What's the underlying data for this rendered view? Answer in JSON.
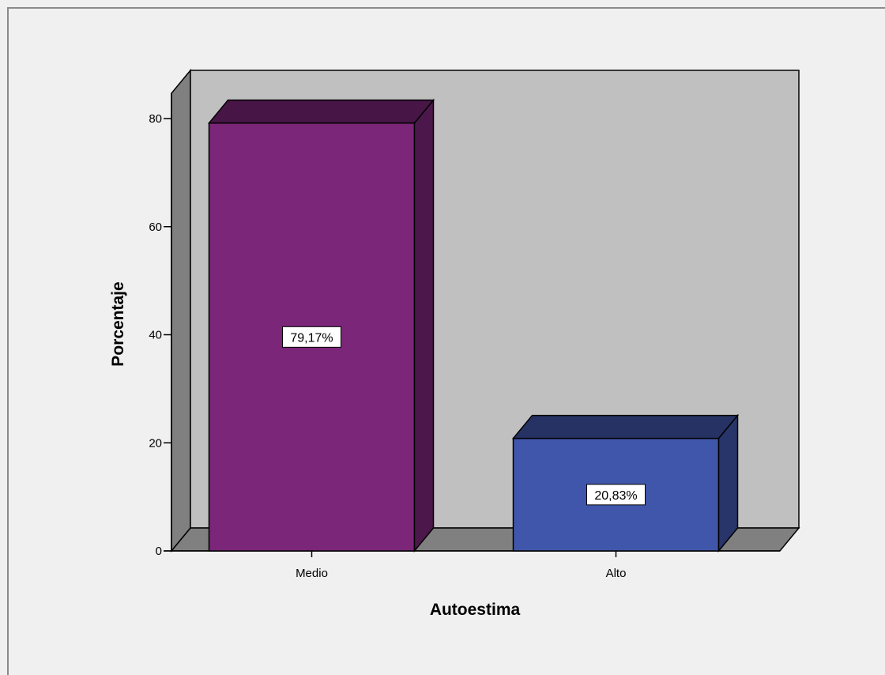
{
  "chart_data": {
    "type": "bar",
    "categories": [
      "Medio",
      "Alto"
    ],
    "values": [
      79.17,
      20.83
    ],
    "data_labels": [
      "79,17%",
      "20,83%"
    ],
    "bar_colors": [
      "#7b2679",
      "#3f56ab"
    ],
    "xlabel": "Autoestima",
    "ylabel": "Porcentaje",
    "ylim": [
      0,
      80
    ],
    "yticks": [
      0,
      20,
      40,
      60,
      80
    ],
    "style": "3d",
    "grid": false,
    "legend": "none",
    "wall_color": "#c0c0c0",
    "side_wall_color": "#808080",
    "floor_color": "#808080"
  }
}
